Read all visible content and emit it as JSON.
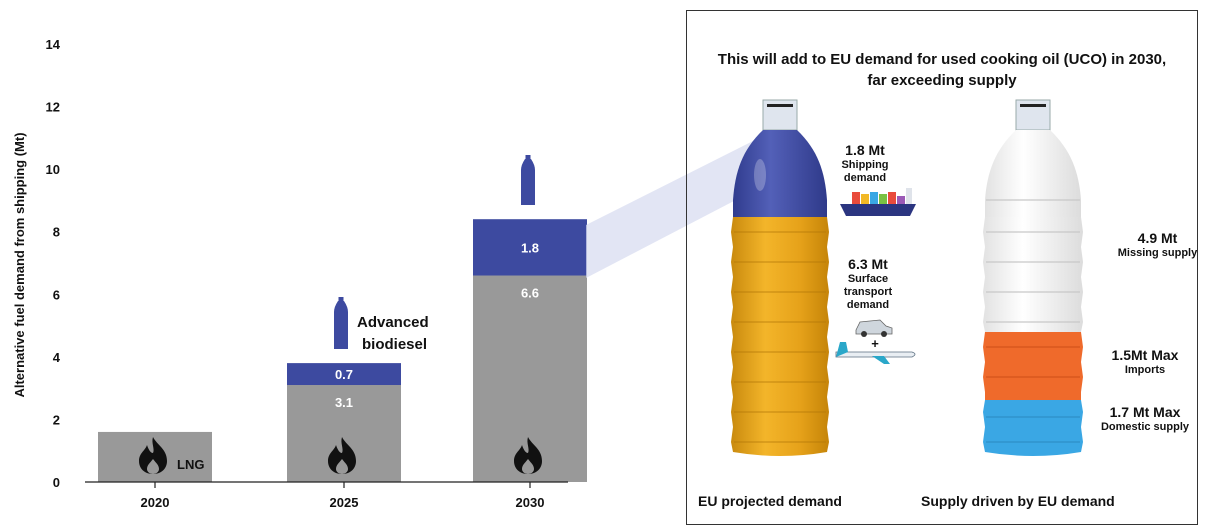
{
  "chart_data": {
    "type": "bar",
    "ylabel": "Alternative fuel demand from shipping (Mt)",
    "ylim": [
      0,
      14
    ],
    "yticks": [
      0,
      2,
      4,
      6,
      8,
      10,
      12,
      14
    ],
    "categories": [
      "2020",
      "2025",
      "2030"
    ],
    "series": [
      {
        "values": [
          1.6,
          3.1,
          6.6
        ],
        "labels": [
          "",
          "3.1",
          "6.6"
        ],
        "color": "#999999"
      },
      {
        "values": [
          0,
          0.7,
          1.8
        ],
        "labels": [
          "",
          "0.7",
          "1.8"
        ],
        "color": "#3d4aa0"
      }
    ],
    "annotations": {
      "lng_label": "LNG",
      "biodiesel_label_1": "Advanced",
      "biodiesel_label_2": "biodiesel"
    },
    "grid": false
  },
  "panel": {
    "title_line1": "This will add to EU demand for used cooking oil (UCO) in 2030,",
    "title_line2": "far exceeding supply",
    "left_bottle": {
      "shipping_value": "1.8 Mt",
      "shipping_label_1": "Shipping",
      "shipping_label_2": "demand",
      "surface_value": "6.3 Mt",
      "surface_label_1": "Surface",
      "surface_label_2": "transport",
      "surface_label_3": "demand",
      "plus": "+",
      "caption": "EU projected demand"
    },
    "right_bottle": {
      "missing_value": "4.9 Mt",
      "missing_label": "Missing supply",
      "imports_value": "1.5Mt Max",
      "imports_label": "Imports",
      "domestic_value": "1.7 Mt Max",
      "domestic_label": "Domestic supply",
      "caption": "Supply driven by EU demand"
    },
    "colors": {
      "blue": "#3d4aa0",
      "oil": "#e8a317",
      "orange": "#ef6a2b",
      "light_blue": "#3aa7e4",
      "gray": "#999999"
    }
  }
}
